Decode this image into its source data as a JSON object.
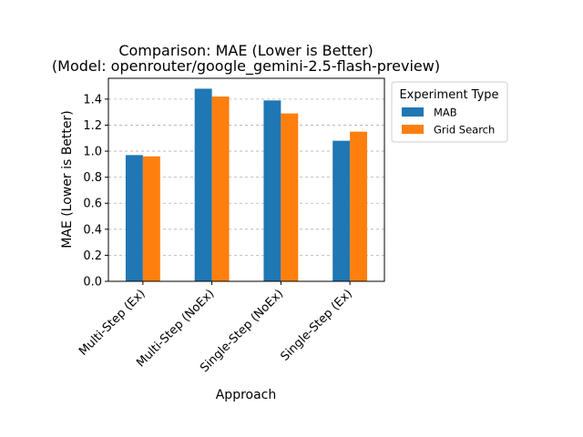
{
  "chart_data": {
    "type": "bar",
    "title": "Comparison: MAE (Lower is Better)",
    "subtitle": "(Model: openrouter/google_gemini-2.5-flash-preview)",
    "xlabel": "Approach",
    "ylabel": "MAE (Lower is Better)",
    "categories": [
      "Multi-Step (Ex)",
      "Multi-Step (NoEx)",
      "Single-Step (NoEx)",
      "Single-Step (Ex)"
    ],
    "series": [
      {
        "name": "MAB",
        "values": [
          0.97,
          1.48,
          1.39,
          1.08
        ],
        "color": "#1f77b4"
      },
      {
        "name": "Grid Search",
        "values": [
          0.96,
          1.42,
          1.29,
          1.15
        ],
        "color": "#ff7f0e"
      }
    ],
    "ylim": [
      0,
      1.56
    ],
    "yticks": [
      "0.0",
      "0.2",
      "0.4",
      "0.6",
      "0.8",
      "1.0",
      "1.2",
      "1.4"
    ],
    "grid": "y-dashed",
    "legend": {
      "title": "Experiment Type",
      "placement": "outside-right"
    }
  }
}
